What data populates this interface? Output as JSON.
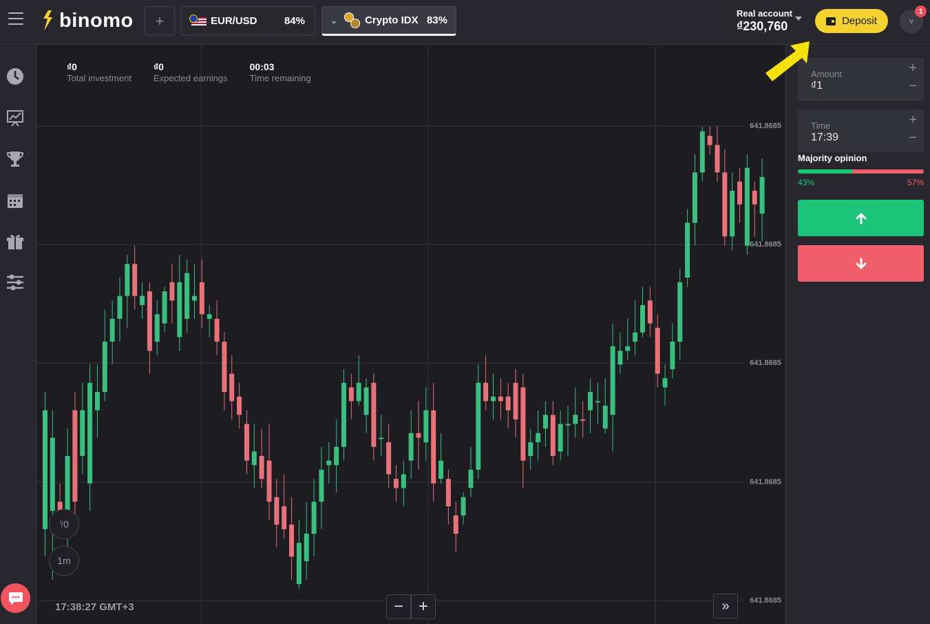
{
  "header": {
    "logo_text": "binomo",
    "add_tab_label": "+",
    "assets": [
      {
        "name": "EUR/USD",
        "payout": "84%"
      },
      {
        "name": "Crypto IDX",
        "payout": "83%"
      }
    ],
    "account_label": "Real account",
    "balance": "₫230,760",
    "deposit_label": "Deposit",
    "avatar_letter": "v",
    "notification_count": "1"
  },
  "stats": {
    "total_investment_value": "₫0",
    "total_investment_label": "Total investment",
    "expected_earnings_value": "₫0",
    "expected_earnings_label": "Expected earnings",
    "time_remaining_value": "00:03",
    "time_remaining_label": "Time remaining"
  },
  "chart_controls": {
    "indicator_label": "⫯0",
    "timeframe_label": "1m",
    "clock": "17:38:27 GMT+3",
    "zoom_out": "−",
    "zoom_in": "+",
    "scroll_end": "»"
  },
  "price_ticks": [
    "641.8685",
    "641.8685",
    "641.8685",
    "641.8685",
    "641.8685"
  ],
  "trade_panel": {
    "amount_label": "Amount",
    "amount_value": "₫1",
    "time_label": "Time",
    "time_value": "17:39",
    "plus": "+",
    "minus": "−",
    "majority_title": "Majority opinion",
    "majority_up_pct": "43%",
    "majority_down_pct": "57%",
    "majority_up_fraction": 0.43
  },
  "colors": {
    "up": "#1cc47a",
    "down": "#f25f6c",
    "deposit": "#f5d230",
    "candle_up": "#3bbf80",
    "candle_down": "#e8727a"
  },
  "candles": [
    [
      0.62,
      0.88,
      0.94,
      0.58,
      "u"
    ],
    [
      0.84,
      0.68,
      0.99,
      0.62,
      "u"
    ],
    [
      0.82,
      0.86,
      0.9,
      0.78,
      "d"
    ],
    [
      0.86,
      0.72,
      0.92,
      0.66,
      "u"
    ],
    [
      0.62,
      0.82,
      0.86,
      0.58,
      "d"
    ],
    [
      0.72,
      0.62,
      0.76,
      0.56,
      "u"
    ],
    [
      0.56,
      0.78,
      0.84,
      0.52,
      "u"
    ],
    [
      0.62,
      0.58,
      0.68,
      0.52,
      "u"
    ],
    [
      0.47,
      0.58,
      0.6,
      0.4,
      "u"
    ],
    [
      0.42,
      0.47,
      0.52,
      0.38,
      "u"
    ],
    [
      0.37,
      0.42,
      0.47,
      0.33,
      "u"
    ],
    [
      0.3,
      0.37,
      0.44,
      0.28,
      "u"
    ],
    [
      0.3,
      0.37,
      0.4,
      0.26,
      "d"
    ],
    [
      0.39,
      0.37,
      0.42,
      0.34,
      "u"
    ],
    [
      0.36,
      0.49,
      0.54,
      0.34,
      "d"
    ],
    [
      0.41,
      0.47,
      0.5,
      0.38,
      "u"
    ],
    [
      0.36,
      0.43,
      0.45,
      0.35,
      "u"
    ],
    [
      0.38,
      0.34,
      0.43,
      0.3,
      "d"
    ],
    [
      0.34,
      0.46,
      0.49,
      0.28,
      "u"
    ],
    [
      0.32,
      0.42,
      0.45,
      0.29,
      "u"
    ],
    [
      0.38,
      0.37,
      0.42,
      0.3,
      "u"
    ],
    [
      0.34,
      0.41,
      0.44,
      0.29,
      "d"
    ],
    [
      0.41,
      0.42,
      0.46,
      0.39,
      "u"
    ],
    [
      0.42,
      0.47,
      0.5,
      0.38,
      "d"
    ],
    [
      0.47,
      0.58,
      0.62,
      0.45,
      "d"
    ],
    [
      0.54,
      0.6,
      0.64,
      0.5,
      "d"
    ],
    [
      0.59,
      0.63,
      0.66,
      0.56,
      "d"
    ],
    [
      0.65,
      0.73,
      0.76,
      0.62,
      "d"
    ],
    [
      0.71,
      0.74,
      0.79,
      0.65,
      "u"
    ],
    [
      0.72,
      0.77,
      0.79,
      0.66,
      "d"
    ],
    [
      0.73,
      0.82,
      0.86,
      0.65,
      "d"
    ],
    [
      0.81,
      0.87,
      0.92,
      0.77,
      "d"
    ],
    [
      0.83,
      0.88,
      0.9,
      0.76,
      "d"
    ],
    [
      0.87,
      0.94,
      0.99,
      0.81,
      "d"
    ],
    [
      0.91,
      1.0,
      1.01,
      0.86,
      "u"
    ],
    [
      0.89,
      0.95,
      0.99,
      0.82,
      "u"
    ],
    [
      0.82,
      0.89,
      0.94,
      0.77,
      "u"
    ],
    [
      0.75,
      0.82,
      0.88,
      0.7,
      "u"
    ],
    [
      0.73,
      0.74,
      0.78,
      0.69,
      "u"
    ],
    [
      0.7,
      0.74,
      0.8,
      0.64,
      "u"
    ],
    [
      0.56,
      0.7,
      0.73,
      0.53,
      "u"
    ],
    [
      0.57,
      0.6,
      0.64,
      0.54,
      "d"
    ],
    [
      0.56,
      0.6,
      0.61,
      0.5,
      "u"
    ],
    [
      0.57,
      0.63,
      0.67,
      0.55,
      "u"
    ],
    [
      0.56,
      0.7,
      0.73,
      0.54,
      "d"
    ],
    [
      0.68,
      0.68,
      0.72,
      0.63,
      "u"
    ],
    [
      0.76,
      0.69,
      0.79,
      0.65,
      "d"
    ],
    [
      0.77,
      0.79,
      0.82,
      0.74,
      "d"
    ],
    [
      0.76,
      0.79,
      0.83,
      0.73,
      "u"
    ],
    [
      0.73,
      0.67,
      0.77,
      0.62,
      "u"
    ],
    [
      0.67,
      0.68,
      0.75,
      0.6,
      "d"
    ],
    [
      0.69,
      0.62,
      0.73,
      0.57,
      "u"
    ],
    [
      0.62,
      0.78,
      0.82,
      0.56,
      "d"
    ],
    [
      0.73,
      0.77,
      0.78,
      0.67,
      "u"
    ],
    [
      0.77,
      0.83,
      0.87,
      0.75,
      "d"
    ],
    [
      0.85,
      0.89,
      0.93,
      0.82,
      "d"
    ],
    [
      0.85,
      0.81,
      0.87,
      0.8,
      "u"
    ],
    [
      0.79,
      0.75,
      0.81,
      0.7,
      "u"
    ],
    [
      0.75,
      0.56,
      0.77,
      0.52,
      "u"
    ],
    [
      0.56,
      0.6,
      0.62,
      0.5,
      "d"
    ],
    [
      0.6,
      0.59,
      0.64,
      0.54,
      "u"
    ],
    [
      0.59,
      0.6,
      0.64,
      0.55,
      "d"
    ],
    [
      0.59,
      0.62,
      0.66,
      0.56,
      "d"
    ],
    [
      0.56,
      0.64,
      0.68,
      0.53,
      "d"
    ],
    [
      0.73,
      0.57,
      0.79,
      0.54,
      "d"
    ],
    [
      0.72,
      0.69,
      0.75,
      0.66,
      "u"
    ],
    [
      0.69,
      0.67,
      0.73,
      0.62,
      "u"
    ],
    [
      0.66,
      0.63,
      0.7,
      0.6,
      "u"
    ],
    [
      0.63,
      0.72,
      0.74,
      0.6,
      "d"
    ],
    [
      0.71,
      0.65,
      0.73,
      0.62,
      "u"
    ],
    [
      0.65,
      0.65,
      0.72,
      0.61,
      "u"
    ],
    [
      0.65,
      0.63,
      0.68,
      0.57,
      "u"
    ],
    [
      0.64,
      0.64,
      0.68,
      0.6,
      "d"
    ],
    [
      0.62,
      0.58,
      0.67,
      0.55,
      "u"
    ],
    [
      0.6,
      0.6,
      0.65,
      0.56,
      "u"
    ],
    [
      0.66,
      0.61,
      0.67,
      0.55,
      "u"
    ],
    [
      0.63,
      0.48,
      0.71,
      0.43,
      "u"
    ],
    [
      0.52,
      0.49,
      0.54,
      0.45,
      "u"
    ],
    [
      0.49,
      0.48,
      0.51,
      0.42,
      "u"
    ],
    [
      0.47,
      0.45,
      0.5,
      0.38,
      "u"
    ],
    [
      0.45,
      0.39,
      0.46,
      0.35,
      "u"
    ],
    [
      0.38,
      0.43,
      0.46,
      0.35,
      "d"
    ],
    [
      0.44,
      0.54,
      0.57,
      0.41,
      "d"
    ],
    [
      0.55,
      0.57,
      0.61,
      0.52,
      "u"
    ],
    [
      0.53,
      0.47,
      0.55,
      0.43,
      "u"
    ],
    [
      0.47,
      0.34,
      0.51,
      0.31,
      "u"
    ],
    [
      0.33,
      0.21,
      0.35,
      0.18,
      "u"
    ],
    [
      0.21,
      0.1,
      0.26,
      0.06,
      "u"
    ],
    [
      0.1,
      0.01,
      0.12,
      0.0,
      "u"
    ],
    [
      0.02,
      0.04,
      0.06,
      0.0,
      "d"
    ],
    [
      0.04,
      0.1,
      0.12,
      0.0,
      "d"
    ],
    [
      0.1,
      0.24,
      0.26,
      0.05,
      "d"
    ],
    [
      0.14,
      0.24,
      0.27,
      0.1,
      "u"
    ],
    [
      0.12,
      0.17,
      0.21,
      0.09,
      "d"
    ],
    [
      0.09,
      0.26,
      0.28,
      0.06,
      "u"
    ],
    [
      0.17,
      0.14,
      0.24,
      0.12,
      "d"
    ],
    [
      0.19,
      0.11,
      0.25,
      0.07,
      "u"
    ]
  ]
}
